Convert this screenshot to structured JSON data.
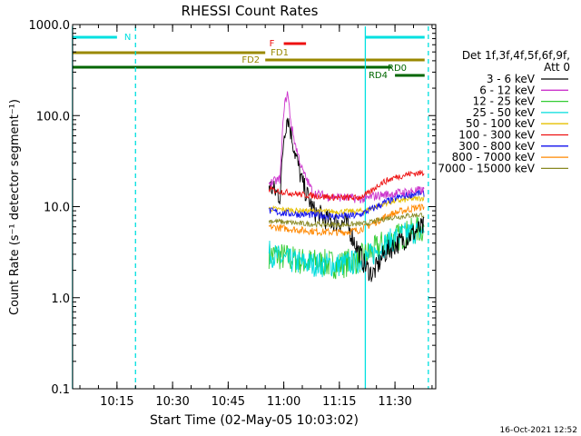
{
  "chart_data": {
    "type": "line",
    "title": "RHESSI Count Rates",
    "xlabel": "Start Time (02-May-05 10:03:02)",
    "ylabel": "Count Rate (s⁻¹ detector segment⁻¹)",
    "yscale": "log",
    "ylim": [
      0.1,
      1000.0
    ],
    "xlim": [
      "10:03:02",
      "11:41:00"
    ],
    "y_ticks": [
      "0.1",
      "1.0",
      "10.0",
      "100.0",
      "1000.0"
    ],
    "x_ticks": [
      "10:15",
      "10:30",
      "10:45",
      "11:00",
      "11:15",
      "11:30"
    ],
    "timestamp": "16-Oct-2021 12:52",
    "legend": {
      "placement": "right",
      "header": [
        "Det 1f,3f,4f,5f,6f,9f,",
        "Att 0"
      ],
      "entries": [
        {
          "label": "3 - 6 keV",
          "color": "#000000"
        },
        {
          "label": "6 - 12 keV",
          "color": "#cc33cc"
        },
        {
          "label": "12 - 25 keV",
          "color": "#33cc33"
        },
        {
          "label": "25 - 50 keV",
          "color": "#00dddd"
        },
        {
          "label": "50 - 100 keV",
          "color": "#e6c000"
        },
        {
          "label": "100 - 300 keV",
          "color": "#ee1111"
        },
        {
          "label": "300 - 800 keV",
          "color": "#1111ee"
        },
        {
          "label": "800 - 7000 keV",
          "color": "#ff8800"
        },
        {
          "label": "7000 - 15000 keV",
          "color": "#888822"
        }
      ]
    },
    "series": [
      {
        "name": "3 - 6 keV",
        "color": "#000000",
        "times": [
          "10:56",
          "10:59",
          "11:00",
          "11:01",
          "11:03",
          "11:05",
          "11:08",
          "11:12",
          "11:17",
          "11:22",
          "11:24",
          "11:27",
          "11:30",
          "11:33",
          "11:36",
          "11:38"
        ],
        "values": [
          17,
          13,
          60,
          100,
          40,
          18,
          9,
          7,
          6.5,
          2.2,
          1.8,
          3.0,
          3.8,
          4.5,
          5.5,
          6.0
        ]
      },
      {
        "name": "6 - 12 keV",
        "color": "#cc33cc",
        "times": [
          "10:56",
          "10:59",
          "11:00",
          "11:01",
          "11:02",
          "11:03",
          "11:05",
          "11:08",
          "11:12",
          "11:17",
          "11:22",
          "11:24",
          "11:27",
          "11:30",
          "11:33",
          "11:36",
          "11:38"
        ],
        "values": [
          18,
          20,
          120,
          180,
          80,
          50,
          25,
          14,
          13,
          12.5,
          12,
          13,
          13.5,
          14,
          14.5,
          15,
          15
        ]
      },
      {
        "name": "12 - 25 keV",
        "color": "#33cc33",
        "times": [
          "10:56",
          "11:00",
          "11:05",
          "11:10",
          "11:15",
          "11:20",
          "11:24",
          "11:27",
          "11:30",
          "11:33",
          "11:36",
          "11:38"
        ],
        "values": [
          3.0,
          2.8,
          2.5,
          2.4,
          2.3,
          2.6,
          3.2,
          4.0,
          4.5,
          5.0,
          5.5,
          5.8
        ]
      },
      {
        "name": "25 - 50 keV",
        "color": "#00dddd",
        "times": [
          "10:56",
          "11:00",
          "11:05",
          "11:10",
          "11:15",
          "11:20",
          "11:24",
          "11:27",
          "11:30",
          "11:33",
          "11:36",
          "11:38"
        ],
        "values": [
          3.1,
          2.6,
          2.4,
          2.3,
          2.3,
          2.5,
          3.0,
          3.8,
          4.5,
          5.0,
          5.4,
          5.6
        ]
      },
      {
        "name": "50 - 100 keV",
        "color": "#e6c000",
        "times": [
          "10:56",
          "11:05",
          "11:15",
          "11:22",
          "11:26",
          "11:30",
          "11:34",
          "11:38"
        ],
        "values": [
          9.5,
          9.0,
          8.8,
          9.0,
          10.5,
          11.5,
          12.0,
          12.5
        ]
      },
      {
        "name": "100 - 300 keV",
        "color": "#ee1111",
        "times": [
          "10:56",
          "11:00",
          "11:05",
          "11:10",
          "11:15",
          "11:20",
          "11:23",
          "11:26",
          "11:30",
          "11:34",
          "11:38"
        ],
        "values": [
          15.5,
          14.5,
          13.5,
          13.0,
          12.5,
          12.5,
          14.0,
          18.0,
          21.0,
          23.0,
          23.5
        ]
      },
      {
        "name": "300 - 800 keV",
        "color": "#1111ee",
        "times": [
          "10:56",
          "11:00",
          "11:05",
          "11:10",
          "11:15",
          "11:20",
          "11:24",
          "11:28",
          "11:32",
          "11:36",
          "11:38"
        ],
        "values": [
          9.0,
          8.5,
          8.2,
          8.0,
          7.8,
          8.0,
          9.5,
          11.5,
          13.0,
          14.0,
          14.0
        ]
      },
      {
        "name": "800 - 7000 keV",
        "color": "#ff8800",
        "times": [
          "10:56",
          "11:00",
          "11:05",
          "11:10",
          "11:15",
          "11:20",
          "11:24",
          "11:28",
          "11:32",
          "11:36",
          "11:38"
        ],
        "values": [
          6.0,
          5.8,
          5.5,
          5.3,
          5.2,
          5.5,
          6.5,
          8.0,
          9.0,
          9.8,
          10.0
        ]
      },
      {
        "name": "7000 - 15000 keV",
        "color": "#888822",
        "times": [
          "10:56",
          "11:05",
          "11:15",
          "11:22",
          "11:28",
          "11:34",
          "11:38"
        ],
        "values": [
          7.0,
          6.5,
          6.3,
          6.5,
          7.5,
          8.0,
          8.2
        ]
      }
    ],
    "flag_bars": [
      {
        "label": "N",
        "color": "#00e0e0",
        "segments": [
          [
            "10:03",
            "10:15"
          ],
          [
            "11:22",
            "11:38"
          ]
        ]
      },
      {
        "label": "F",
        "color": "#ee1111",
        "segments": [
          [
            "11:00",
            "11:06"
          ]
        ]
      },
      {
        "label": "FD1",
        "color": "#998800",
        "segments": [
          [
            "10:03",
            "10:55"
          ]
        ]
      },
      {
        "label": "FD2",
        "color": "#998800",
        "segments": [
          [
            "10:55",
            "11:38"
          ]
        ]
      },
      {
        "label": "RD0",
        "color": "#006600",
        "segments": [
          [
            "10:03",
            "11:29"
          ]
        ]
      },
      {
        "label": "RD4",
        "color": "#006600",
        "segments": [
          [
            "11:30",
            "11:38"
          ]
        ]
      }
    ],
    "vertical_markers": [
      {
        "time": "10:03",
        "style": "solid",
        "color": "#00e0e0"
      },
      {
        "time": "10:20",
        "style": "dashed",
        "color": "#00e0e0"
      },
      {
        "time": "11:22",
        "style": "solid",
        "color": "#00e0e0"
      },
      {
        "time": "11:39",
        "style": "dashed",
        "color": "#00e0e0"
      }
    ]
  }
}
